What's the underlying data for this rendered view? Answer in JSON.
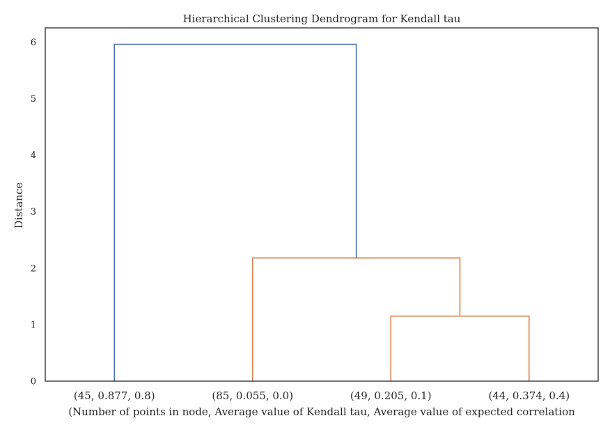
{
  "chart_data": {
    "type": "dendrogram",
    "title": "Hierarchical Clustering Dendrogram for Kendall tau",
    "xlabel": "(Number of points in node, Average value of Kendall tau, Average value of expected correlation",
    "ylabel": "Distance",
    "ylim": [
      0,
      6.25
    ],
    "yticks": [
      "0",
      "1",
      "2",
      "3",
      "4",
      "5",
      "6"
    ],
    "leaves": [
      "(45, 0.877, 0.8)",
      "(85, 0.055, 0.0)",
      "(49, 0.205, 0.1)",
      "(44, 0.374, 0.4)"
    ],
    "merges": [
      {
        "left": 2,
        "right": 3,
        "height": 1.15,
        "color": "#dd8452"
      },
      {
        "left": 1,
        "right": "m0",
        "height": 2.18,
        "color": "#dd8452"
      },
      {
        "left": 0,
        "right": "m1",
        "height": 5.96,
        "color": "#4c72b0"
      }
    ],
    "grid": false,
    "legend": "none"
  }
}
